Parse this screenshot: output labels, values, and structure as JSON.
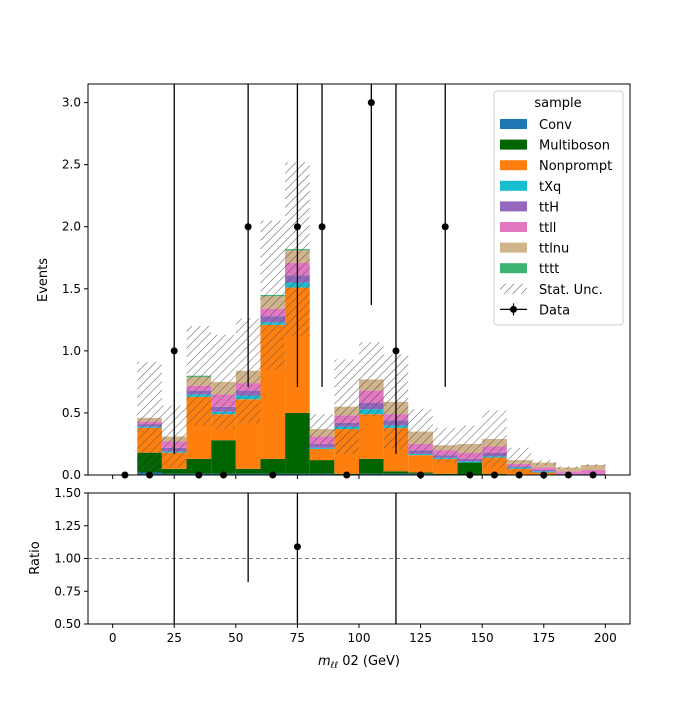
{
  "chart_data": {
    "type": "bar",
    "stacked": true,
    "bin_edges": [
      0,
      10,
      20,
      30,
      40,
      50,
      60,
      70,
      80,
      90,
      100,
      110,
      120,
      130,
      140,
      150,
      160,
      170,
      180,
      190,
      200
    ],
    "series": [
      {
        "name": "Conv",
        "color": "#1f77b4",
        "values": [
          0,
          0.02,
          0.01,
          0.01,
          0.01,
          0.01,
          0.01,
          0.01,
          0.01,
          0,
          0.01,
          0.01,
          0.01,
          0,
          0,
          0,
          0,
          0,
          0,
          0
        ]
      },
      {
        "name": "Multiboson",
        "color": "#006400",
        "values": [
          0,
          0.16,
          0.04,
          0.12,
          0.27,
          0.04,
          0.12,
          0.49,
          0.11,
          0.01,
          0.12,
          0.02,
          0.01,
          0.01,
          0.1,
          0.01,
          0,
          0,
          0,
          0
        ]
      },
      {
        "name": "Nonprompt",
        "color": "#ff7f0e",
        "values": [
          0,
          0.2,
          0.13,
          0.5,
          0.21,
          0.56,
          1.08,
          1.01,
          0.09,
          0.36,
          0.36,
          0.35,
          0.14,
          0.12,
          0,
          0.13,
          0.05,
          0.02,
          0,
          0
        ]
      },
      {
        "name": "tXq",
        "color": "#17becf",
        "values": [
          0,
          0.01,
          0.01,
          0.02,
          0.02,
          0.03,
          0.02,
          0.04,
          0.01,
          0.02,
          0.04,
          0.02,
          0.01,
          0.01,
          0.01,
          0.01,
          0.01,
          0.01,
          0,
          0
        ]
      },
      {
        "name": "ttH",
        "color": "#9467bd",
        "values": [
          0,
          0.02,
          0.03,
          0.03,
          0.04,
          0.04,
          0.05,
          0.06,
          0.03,
          0.03,
          0.05,
          0.04,
          0.03,
          0.02,
          0.02,
          0.03,
          0.01,
          0.01,
          0.01,
          0.01
        ]
      },
      {
        "name": "ttll",
        "color": "#e377c2",
        "values": [
          0,
          0.02,
          0.05,
          0.04,
          0.1,
          0.06,
          0.06,
          0.1,
          0.06,
          0.06,
          0.1,
          0.05,
          0.05,
          0.04,
          0.05,
          0.05,
          0.02,
          0.02,
          0.02,
          0.03
        ]
      },
      {
        "name": "ttlnu",
        "color": "#d2b48c",
        "values": [
          0,
          0.03,
          0.04,
          0.07,
          0.1,
          0.1,
          0.1,
          0.1,
          0.06,
          0.07,
          0.09,
          0.1,
          0.1,
          0.04,
          0.07,
          0.06,
          0.03,
          0.04,
          0.03,
          0.04
        ]
      },
      {
        "name": "tttt",
        "color": "#3cb371",
        "values": [
          0,
          0,
          0,
          0.01,
          0,
          0,
          0.01,
          0.01,
          0,
          0,
          0,
          0,
          0,
          0,
          0,
          0,
          0,
          0,
          0,
          0
        ]
      }
    ],
    "stat_unc": [
      0,
      0.45,
      0.25,
      0.4,
      0.38,
      0.42,
      0.6,
      0.7,
      0.12,
      0.38,
      0.3,
      0.38,
      0.18,
      0.14,
      0.15,
      0.23,
      0.1,
      0.02,
      0.01,
      0.01
    ],
    "data": {
      "name": "Data",
      "x": [
        5,
        15,
        25,
        35,
        45,
        55,
        65,
        75,
        85,
        95,
        105,
        115,
        125,
        135,
        145,
        155,
        165,
        175,
        185,
        195
      ],
      "y": [
        0,
        0,
        1,
        0,
        0,
        2,
        0,
        2,
        2,
        0,
        3,
        1,
        0,
        2,
        0,
        0,
        0,
        0,
        0,
        0
      ],
      "err_low": [
        0,
        0,
        0.83,
        0,
        0,
        1.29,
        0,
        1.29,
        1.29,
        0,
        1.63,
        0.83,
        0,
        1.29,
        0,
        0,
        0,
        0,
        0,
        0
      ],
      "err_high": [
        0,
        0,
        2.3,
        0,
        0,
        2.64,
        0,
        2.64,
        2.64,
        0,
        2.92,
        2.3,
        0,
        2.64,
        0,
        0,
        0,
        0,
        0,
        0
      ]
    },
    "ratio": {
      "ylabel": "Ratio",
      "ylim": [
        0.5,
        1.5
      ],
      "yticks": [
        "0.50",
        "0.75",
        "1.00",
        "1.25",
        "1.50"
      ],
      "points": [
        {
          "x": 25,
          "y": 1.5,
          "lo": 0.5,
          "hi": 1.5,
          "visible": false
        },
        {
          "x": 55,
          "y": 1.8,
          "lo": 0.82,
          "hi": 1.5,
          "visible": false
        },
        {
          "x": 75,
          "y": 1.09,
          "lo": 0.5,
          "hi": 1.5,
          "visible": true
        },
        {
          "x": 115,
          "y": 1.6,
          "lo": 0.5,
          "hi": 1.5,
          "visible": false
        }
      ]
    },
    "xlim": [
      -10,
      210
    ],
    "ylim": [
      0,
      3.15
    ],
    "xticks": [
      "0",
      "25",
      "50",
      "75",
      "100",
      "125",
      "150",
      "175",
      "200"
    ],
    "yticks": [
      "0.0",
      "0.5",
      "1.0",
      "1.5",
      "2.0",
      "2.5",
      "3.0"
    ],
    "ylabel": "Events",
    "xlabel": "m_{ℓℓ} 02 (GeV)",
    "xlabel_parts": {
      "m": "m",
      "sub": "ℓℓ",
      "rest": " 02 (GeV)"
    },
    "legend": {
      "title": "sample",
      "position": "top-right",
      "stat_label": "Stat. Unc.",
      "data_label": "Data"
    }
  }
}
